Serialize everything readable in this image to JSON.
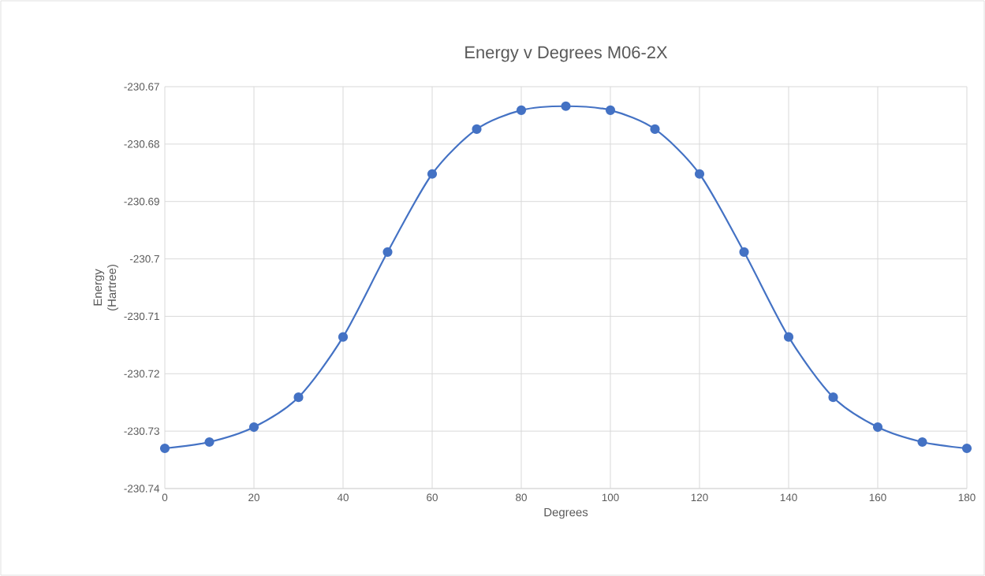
{
  "chart_data": {
    "type": "line",
    "title": "Energy v Degrees M06-2X",
    "xlabel": "Degrees",
    "ylabel": "Energy (Hartree)",
    "x": [
      0,
      10,
      20,
      30,
      40,
      50,
      60,
      70,
      80,
      90,
      100,
      110,
      120,
      130,
      140,
      150,
      160,
      170,
      180
    ],
    "series": [
      {
        "color": "#4472c4",
        "values": [
          -230.733,
          -230.7319,
          -230.7293,
          -230.7241,
          -230.7136,
          -230.6988,
          -230.6852,
          -230.6774,
          -230.6741,
          -230.6734,
          -230.6741,
          -230.6774,
          -230.6852,
          -230.6988,
          -230.7136,
          -230.7241,
          -230.7293,
          -230.7319,
          -230.733
        ]
      }
    ],
    "xlim": [
      0,
      180
    ],
    "xticks": [
      0,
      20,
      40,
      60,
      80,
      100,
      120,
      140,
      160,
      180
    ],
    "ylim": [
      -230.74,
      -230.67
    ],
    "yticks": [
      -230.74,
      -230.73,
      -230.72,
      -230.71,
      -230.7,
      -230.69,
      -230.68,
      -230.67
    ],
    "grid": true,
    "marker": "circle",
    "line_style": "solid"
  }
}
